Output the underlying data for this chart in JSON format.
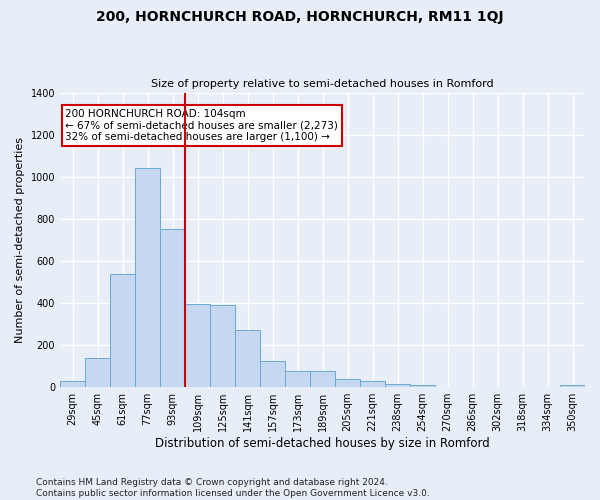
{
  "title": "200, HORNCHURCH ROAD, HORNCHURCH, RM11 1QJ",
  "subtitle": "Size of property relative to semi-detached houses in Romford",
  "xlabel": "Distribution of semi-detached houses by size in Romford",
  "ylabel": "Number of semi-detached properties",
  "categories": [
    "29sqm",
    "45sqm",
    "61sqm",
    "77sqm",
    "93sqm",
    "109sqm",
    "125sqm",
    "141sqm",
    "157sqm",
    "173sqm",
    "189sqm",
    "205sqm",
    "221sqm",
    "238sqm",
    "254sqm",
    "270sqm",
    "286sqm",
    "302sqm",
    "318sqm",
    "334sqm",
    "350sqm"
  ],
  "values": [
    28,
    140,
    540,
    1040,
    750,
    395,
    390,
    270,
    125,
    75,
    75,
    38,
    30,
    15,
    10,
    0,
    0,
    0,
    0,
    0,
    12
  ],
  "bar_color": "#c5d8f0",
  "bar_edgecolor": "#6aaad4",
  "vline_color": "#cc0000",
  "annotation_text": "200 HORNCHURCH ROAD: 104sqm\n← 67% of semi-detached houses are smaller (2,273)\n32% of semi-detached houses are larger (1,100) →",
  "annotation_boxcolor": "white",
  "annotation_edgecolor": "#cc0000",
  "ylim": [
    0,
    1400
  ],
  "yticks": [
    0,
    200,
    400,
    600,
    800,
    1000,
    1200,
    1400
  ],
  "bg_color": "#e8eef8",
  "grid_color": "white",
  "footer": "Contains HM Land Registry data © Crown copyright and database right 2024.\nContains public sector information licensed under the Open Government Licence v3.0.",
  "n_bins": 21,
  "bin_labels_left": [
    "29sqm",
    "45sqm",
    "61sqm",
    "77sqm",
    "93sqm",
    "109sqm",
    "125sqm",
    "141sqm",
    "157sqm",
    "173sqm",
    "189sqm",
    "205sqm",
    "221sqm",
    "238sqm",
    "254sqm",
    "270sqm",
    "286sqm",
    "302sqm",
    "318sqm",
    "334sqm",
    "350sqm"
  ],
  "vline_bin_index": 5,
  "title_fontsize": 10,
  "subtitle_fontsize": 8,
  "ylabel_fontsize": 8,
  "xlabel_fontsize": 8.5,
  "tick_fontsize": 7,
  "footer_fontsize": 6.5
}
